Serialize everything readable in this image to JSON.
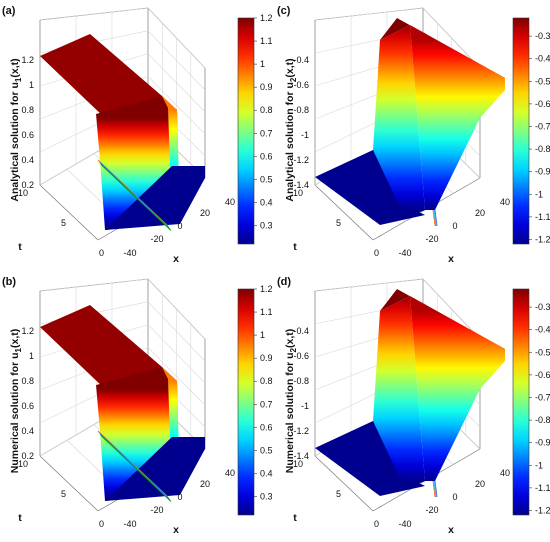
{
  "colormap": [
    "#00008f",
    "#0000ff",
    "#0080ff",
    "#00ffff",
    "#80ff80",
    "#ffff00",
    "#ff8000",
    "#ff0000",
    "#800000"
  ],
  "chart_data": [
    {
      "type": "surface",
      "panel_label": "(a)",
      "zlabel_main": "Analytical solution for u",
      "zlabel_sub": "1",
      "zlabel_tail": "(x,t)",
      "xlabel": "x",
      "ylabel": "t",
      "x_ticks": [
        "-40",
        "-20",
        "0",
        "20",
        "40"
      ],
      "t_ticks": [
        "0",
        "5",
        "10"
      ],
      "z_ticks": [
        "0.2",
        "0.4",
        "0.6",
        "0.8",
        "1",
        "1.2"
      ],
      "colorbar_ticks": [
        "1.2",
        "1.1",
        "1",
        "0.9",
        "0.8",
        "0.7",
        "0.6",
        "0.5",
        "0.4",
        "0.3"
      ],
      "zlim": [
        0.2,
        1.2
      ],
      "clim": [
        0.22,
        1.2
      ],
      "high_value": 1.2,
      "low_value": 0.22,
      "high_side": "left"
    },
    {
      "type": "surface",
      "panel_label": "(c)",
      "zlabel_main": "Analytical solution for u",
      "zlabel_sub": "2",
      "zlabel_tail": "(x,t)",
      "xlabel": "x",
      "ylabel": "t",
      "x_ticks": [
        "-40",
        "-20",
        "0",
        "20",
        "40"
      ],
      "t_ticks": [
        "0",
        "5",
        "10"
      ],
      "z_ticks": [
        "-1.4",
        "-1.2",
        "-1",
        "-0.8",
        "-0.6",
        "-0.4"
      ],
      "colorbar_ticks": [
        "-0.3",
        "-0.4",
        "-0.5",
        "-0.6",
        "-0.7",
        "-0.8",
        "-0.9",
        "-1",
        "-1.1",
        "-1.2"
      ],
      "zlim": [
        -1.4,
        -0.2
      ],
      "clim": [
        -1.22,
        -0.22
      ],
      "high_value": -0.22,
      "low_value": -1.22,
      "high_side": "right"
    },
    {
      "type": "surface",
      "panel_label": "(b)",
      "zlabel_main": "Numerical solution for u",
      "zlabel_sub": "1",
      "zlabel_tail": "(x,t)",
      "xlabel": "x",
      "ylabel": "t",
      "x_ticks": [
        "-40",
        "-20",
        "0",
        "20",
        "40"
      ],
      "t_ticks": [
        "0",
        "5",
        "10"
      ],
      "z_ticks": [
        "0.2",
        "0.4",
        "0.6",
        "0.8",
        "1",
        "1.2"
      ],
      "colorbar_ticks": [
        "1.2",
        "1.1",
        "1",
        "0.9",
        "0.8",
        "0.7",
        "0.6",
        "0.5",
        "0.4",
        "0.3"
      ],
      "zlim": [
        0.2,
        1.2
      ],
      "clim": [
        0.22,
        1.2
      ],
      "high_value": 1.2,
      "low_value": 0.22,
      "high_side": "left"
    },
    {
      "type": "surface",
      "panel_label": "(d)",
      "zlabel_main": "Numerical solution for u",
      "zlabel_sub": "2",
      "zlabel_tail": "(x,t)",
      "xlabel": "x",
      "ylabel": "t",
      "x_ticks": [
        "-40",
        "-20",
        "0",
        "20",
        "40"
      ],
      "t_ticks": [
        "0",
        "5",
        "10"
      ],
      "z_ticks": [
        "-1.4",
        "-1.2",
        "-1",
        "-0.8",
        "-0.6",
        "-0.4"
      ],
      "colorbar_ticks": [
        "-0.3",
        "-0.4",
        "-0.5",
        "-0.6",
        "-0.7",
        "-0.8",
        "-0.9",
        "-1",
        "-1.1",
        "-1.2"
      ],
      "zlim": [
        -1.4,
        -0.2
      ],
      "clim": [
        -1.22,
        -0.22
      ],
      "high_value": -0.22,
      "low_value": -1.22,
      "high_side": "right"
    }
  ]
}
